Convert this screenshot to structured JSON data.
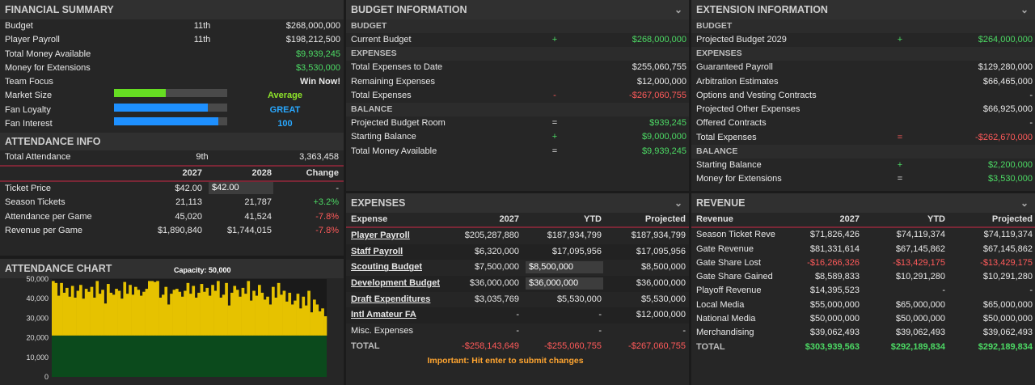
{
  "financial": {
    "title": "FINANCIAL SUMMARY",
    "rows": [
      {
        "label": "Budget",
        "rank": "11th",
        "value": "$268,000,000"
      },
      {
        "label": "Player Payroll",
        "rank": "11th",
        "value": "$198,212,500"
      },
      {
        "label": "Total Money Available",
        "rank": "",
        "value": "$9,939,245"
      },
      {
        "label": "Money for Extensions",
        "rank": "",
        "value": "$3,530,000"
      },
      {
        "label": "Team Focus",
        "rank": "",
        "value": "Win Now!"
      }
    ],
    "meters": [
      {
        "label": "Market Size",
        "value_text": "Average",
        "fill": 0.46,
        "color": "#66dd22"
      },
      {
        "label": "Fan Loyalty",
        "value_text": "GREAT",
        "fill": 0.83,
        "color": "#1e90ff"
      },
      {
        "label": "Fan Interest",
        "value_text": "100",
        "fill": 0.92,
        "color": "#1e90ff"
      }
    ]
  },
  "attendance": {
    "title": "ATTENDANCE INFO",
    "total": {
      "label": "Total Attendance",
      "rank": "9th",
      "value": "3,363,458"
    },
    "headers": [
      "2027",
      "2028",
      "Change"
    ],
    "rows": [
      {
        "label": "Ticket Price",
        "y2027": "$42.00",
        "y2028": "$42.00",
        "change": "-"
      },
      {
        "label": "Season Tickets",
        "y2027": "21,113",
        "y2028": "21,787",
        "change": "+3.2%"
      },
      {
        "label": "Attendance per Game",
        "y2027": "45,020",
        "y2028": "41,524",
        "change": "-7.8%"
      },
      {
        "label": "Revenue per Game",
        "y2027": "$1,890,840",
        "y2028": "$1,744,015",
        "change": "-7.8%"
      }
    ]
  },
  "attendance_chart": {
    "title": "ATTENDANCE CHART",
    "capacity_label": "Capacity: 50,000",
    "y_ticks": [
      "50,000",
      "40,000",
      "30,000",
      "20,000",
      "10,000",
      "0"
    ],
    "season_ticket_level": 21113,
    "games": [
      49000,
      48000,
      41500,
      48000,
      43000,
      45500,
      41000,
      46500,
      40500,
      44000,
      47000,
      40000,
      45000,
      43500,
      46000,
      40500,
      49000,
      42500,
      44500,
      37500,
      47500,
      43000,
      42000,
      45000,
      44000,
      40000,
      48500,
      42500,
      47000,
      42000,
      46000,
      44500,
      41500,
      43500,
      45000,
      49000,
      49000,
      48500,
      49000,
      40500,
      42000,
      46000,
      37000,
      42500,
      44500,
      45000,
      43500,
      41000,
      44000,
      48000,
      42500,
      46500,
      40500,
      43000,
      47500,
      43500,
      45500,
      41500,
      47000,
      44000,
      49000,
      40500,
      42000,
      48000,
      36500,
      43000,
      46500,
      44500,
      41000,
      45500,
      42500,
      49000,
      39000,
      44000,
      41500,
      47000,
      43000,
      39500,
      41000,
      37000,
      46000,
      40500,
      48000,
      42000,
      44000,
      38500,
      43000,
      37000,
      39000,
      42500,
      35000,
      41000,
      36500,
      44000,
      33000,
      39500,
      37000,
      33500,
      35000,
      31000
    ]
  },
  "budget": {
    "title": "BUDGET INFORMATION",
    "sections": [
      {
        "name": "BUDGET",
        "rows": [
          {
            "label": "Current Budget",
            "op": "+",
            "value": "$268,000,000",
            "cls": "green"
          }
        ]
      },
      {
        "name": "EXPENSES",
        "rows": [
          {
            "label": "Total Expenses to Date",
            "op": "",
            "value": "$255,060,755",
            "cls": ""
          },
          {
            "label": "Remaining Expenses",
            "op": "",
            "value": "$12,000,000",
            "cls": ""
          },
          {
            "label": "Total Expenses",
            "op": "-",
            "value": "-$267,060,755",
            "cls": "red"
          }
        ]
      },
      {
        "name": "BALANCE",
        "rows": [
          {
            "label": "Projected Budget Room",
            "op": "=",
            "value": "$939,245",
            "cls": "green"
          },
          {
            "label": "Starting Balance",
            "op": "+",
            "value": "$9,000,000",
            "cls": "green"
          },
          {
            "label": "Total Money Available",
            "op": "=",
            "value": "$9,939,245",
            "cls": "green"
          }
        ]
      }
    ]
  },
  "extension": {
    "title": "EXTENSION INFORMATION",
    "sections": [
      {
        "name": "BUDGET",
        "rows": [
          {
            "label": "Projected Budget 2029",
            "op": "+",
            "value": "$264,000,000",
            "cls": "green"
          }
        ]
      },
      {
        "name": "EXPENSES",
        "rows": [
          {
            "label": "Guaranteed Payroll",
            "op": "",
            "value": "$129,280,000",
            "cls": ""
          },
          {
            "label": "Arbitration Estimates",
            "op": "",
            "value": "$66,465,000",
            "cls": ""
          },
          {
            "label": "Options and Vesting Contracts",
            "op": "",
            "value": "-",
            "cls": ""
          },
          {
            "label": "Projected Other Expenses",
            "op": "",
            "value": "$66,925,000",
            "cls": ""
          },
          {
            "label": "Offered Contracts",
            "op": "",
            "value": "-",
            "cls": ""
          },
          {
            "label": "Total Expenses",
            "op": "=",
            "value": "-$262,670,000",
            "cls": "red"
          }
        ]
      },
      {
        "name": "BALANCE",
        "rows": [
          {
            "label": "Starting Balance",
            "op": "+",
            "value": "$2,200,000",
            "cls": "green"
          },
          {
            "label": "Money for Extensions",
            "op": "=",
            "value": "$3,530,000",
            "cls": "green"
          }
        ]
      }
    ]
  },
  "expenses": {
    "title": "EXPENSES",
    "headers": [
      "Expense",
      "2027",
      "YTD",
      "Projected"
    ],
    "rows": [
      {
        "label": "Player Payroll",
        "link": true,
        "y2027": "$205,287,880",
        "ytd": "$187,934,799",
        "proj": "$187,934,799",
        "input": false
      },
      {
        "label": "Staff Payroll",
        "link": true,
        "y2027": "$6,320,000",
        "ytd": "$17,095,956",
        "proj": "$17,095,956",
        "input": false
      },
      {
        "label": "Scouting Budget",
        "link": true,
        "y2027": "$7,500,000",
        "ytd": "$8,500,000",
        "proj": "$8,500,000",
        "input": true
      },
      {
        "label": "Development Budget",
        "link": true,
        "y2027": "$36,000,000",
        "ytd": "$36,000,000",
        "proj": "$36,000,000",
        "input": true
      },
      {
        "label": "Draft Expenditures",
        "link": true,
        "y2027": "$3,035,769",
        "ytd": "$5,530,000",
        "proj": "$5,530,000",
        "input": false
      },
      {
        "label": "Intl Amateur FA",
        "link": true,
        "y2027": "-",
        "ytd": "-",
        "proj": "$12,000,000",
        "input": false
      },
      {
        "label": "Misc. Expenses",
        "link": false,
        "y2027": "-",
        "ytd": "-",
        "proj": "-",
        "input": false
      }
    ],
    "total": {
      "label": "TOTAL",
      "y2027": "-$258,143,649",
      "ytd": "-$255,060,755",
      "proj": "-$267,060,755"
    },
    "note": "Important: Hit enter to submit changes"
  },
  "revenue": {
    "title": "REVENUE",
    "headers": [
      "Revenue",
      "2027",
      "YTD",
      "Projected"
    ],
    "rows": [
      {
        "label": "Season Ticket Reven",
        "y2027": "$71,826,426",
        "ytd": "$74,119,374",
        "proj": "$74,119,374",
        "cls": ""
      },
      {
        "label": "Gate Revenue",
        "y2027": "$81,331,614",
        "ytd": "$67,145,862",
        "proj": "$67,145,862",
        "cls": ""
      },
      {
        "label": "Gate Share Lost",
        "y2027": "-$16,266,326",
        "ytd": "-$13,429,175",
        "proj": "-$13,429,175",
        "cls": "red"
      },
      {
        "label": "Gate Share Gained",
        "y2027": "$8,589,833",
        "ytd": "$10,291,280",
        "proj": "$10,291,280",
        "cls": ""
      },
      {
        "label": "Playoff Revenue",
        "y2027": "$14,395,523",
        "ytd": "-",
        "proj": "-",
        "cls": ""
      },
      {
        "label": "Local Media",
        "y2027": "$55,000,000",
        "ytd": "$65,000,000",
        "proj": "$65,000,000",
        "cls": ""
      },
      {
        "label": "National Media",
        "y2027": "$50,000,000",
        "ytd": "$50,000,000",
        "proj": "$50,000,000",
        "cls": ""
      },
      {
        "label": "Merchandising",
        "y2027": "$39,062,493",
        "ytd": "$39,062,493",
        "proj": "$39,062,493",
        "cls": ""
      }
    ],
    "total": {
      "label": "TOTAL",
      "y2027": "$303,939,563",
      "ytd": "$292,189,834",
      "proj": "$292,189,834"
    }
  }
}
